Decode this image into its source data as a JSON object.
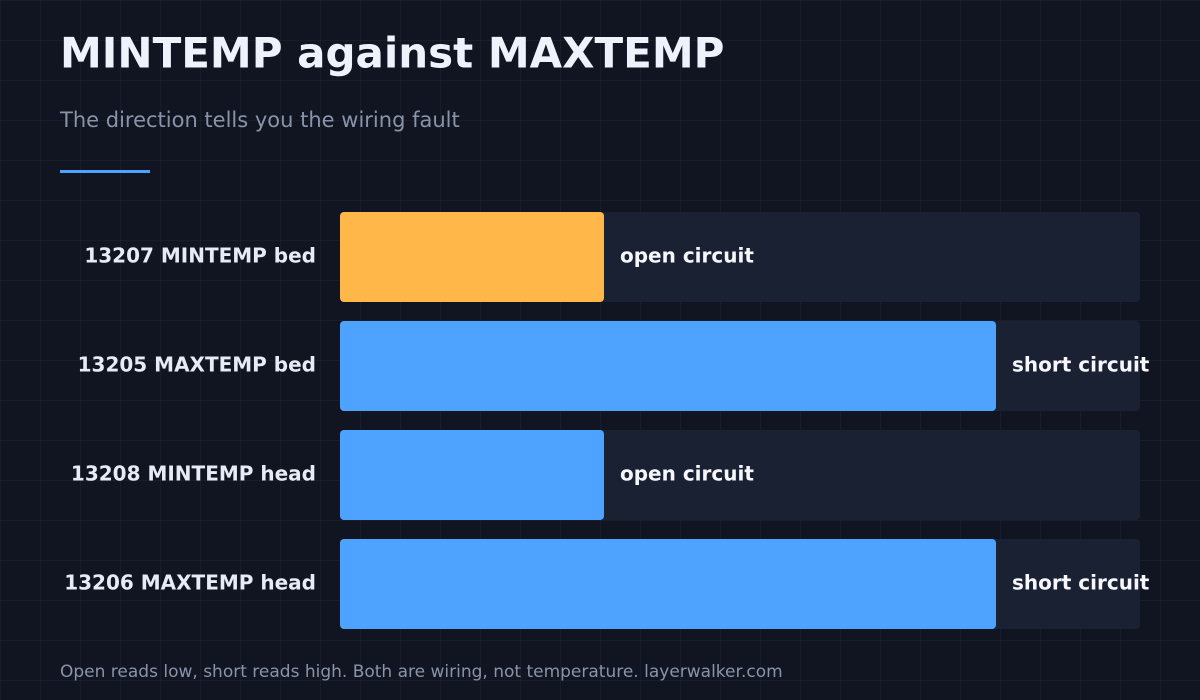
{
  "chart_data": {
    "type": "bar",
    "orientation": "horizontal",
    "title": "MINTEMP against MAXTEMP",
    "subtitle": "The direction tells you the wiring fault",
    "categories": [
      "13207 MINTEMP bed",
      "13205 MAXTEMP bed",
      "13208 MINTEMP head",
      "13206 MAXTEMP head"
    ],
    "values": [
      33,
      82,
      33,
      82
    ],
    "bar_labels": [
      "open circuit",
      "short circuit",
      "open circuit",
      "short circuit"
    ],
    "colors": [
      "#ffb74a",
      "#4da3ff",
      "#4da3ff",
      "#4da3ff"
    ],
    "xlim": [
      0,
      100
    ],
    "footnote": "Open reads low, short reads high. Both are wiring, not temperature. layerwalker.com"
  }
}
